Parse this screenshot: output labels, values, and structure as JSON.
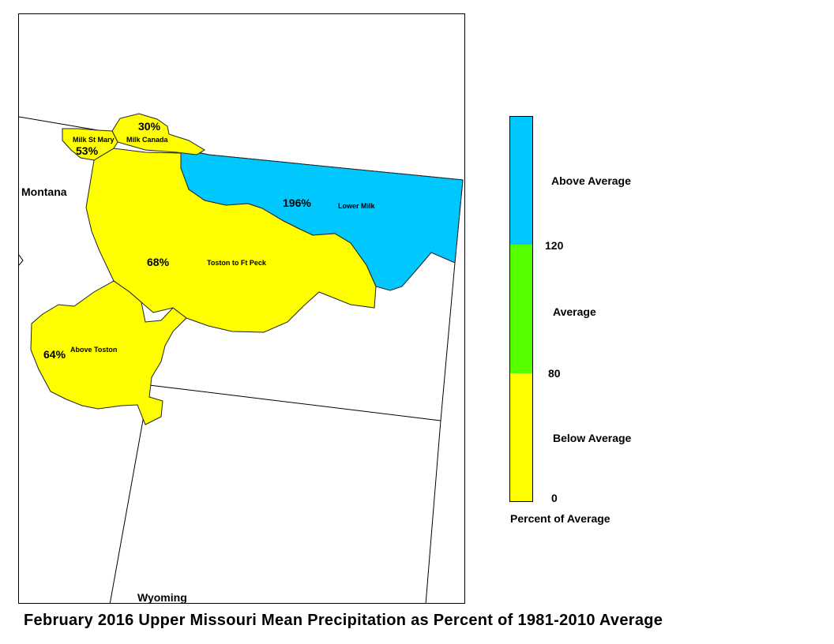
{
  "title": "February 2016 Upper Missouri Mean Precipitation as Percent of 1981-2010 Average",
  "states": {
    "montana": "Montana",
    "wyoming": "Wyoming"
  },
  "basins": [
    {
      "name": "Milk St Mary",
      "percent": "53%",
      "category": "below"
    },
    {
      "name": "Milk Canada",
      "percent": "30%",
      "category": "below"
    },
    {
      "name": "Lower Milk",
      "percent": "196%",
      "category": "above"
    },
    {
      "name": "Toston to Ft Peck",
      "percent": "68%",
      "category": "below"
    },
    {
      "name": "Above Toston",
      "percent": "64%",
      "category": "below"
    }
  ],
  "legend": {
    "title": "Percent of Average",
    "categories": [
      {
        "label": "Above Average",
        "color": "#00c8ff"
      },
      {
        "label": "Average",
        "color": "#55ff00"
      },
      {
        "label": "Below Average",
        "color": "#ffff00"
      }
    ],
    "breaks": [
      "120",
      "80",
      "0"
    ]
  },
  "colors": {
    "above": "#00c8ff",
    "average": "#55ff00",
    "below": "#ffff00"
  }
}
